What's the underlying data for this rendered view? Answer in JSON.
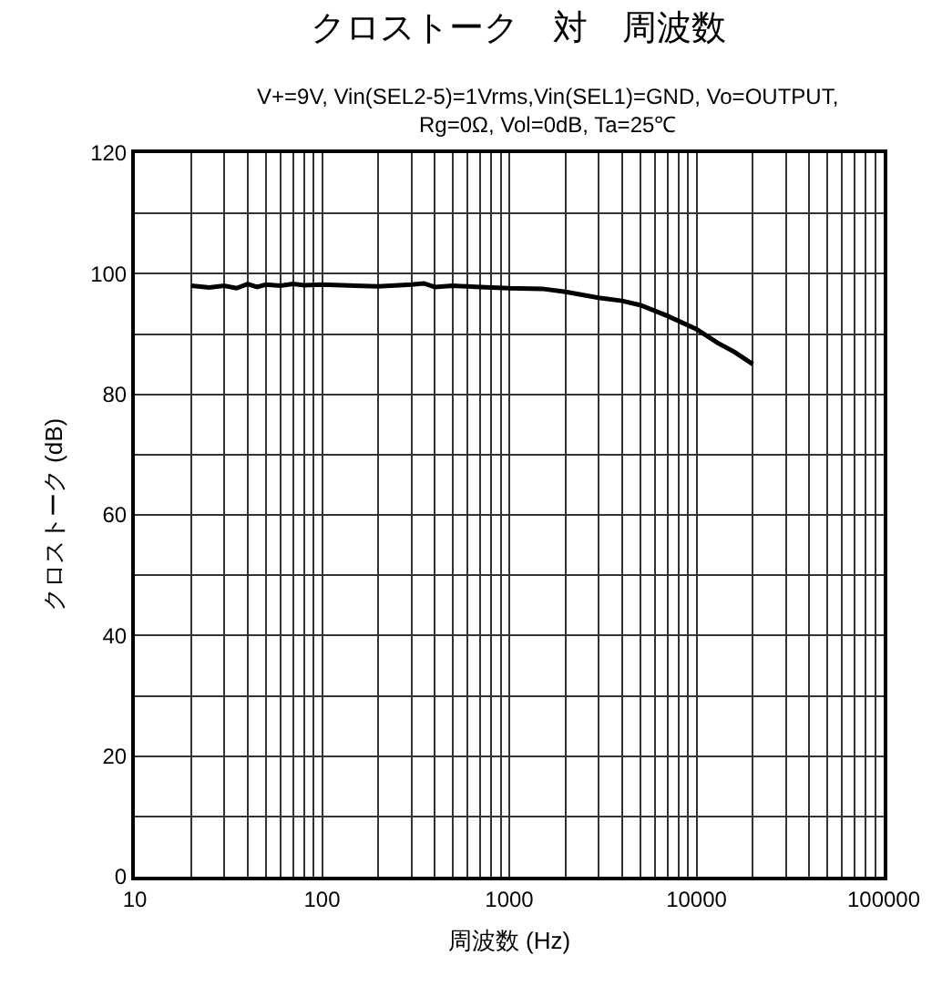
{
  "chart_data": {
    "type": "line",
    "title": "クロストーク　対　周波数",
    "subtitle": "V+=9V, Vin(SEL2-5)=1Vrms,Vin(SEL1)=GND, Vo=OUTPUT,\nRg=0Ω, Vol=0dB, Ta=25℃",
    "xlabel": "周波数 (Hz)",
    "ylabel": "クロストーク (dB)",
    "log": "x",
    "grid": true,
    "marker": "none",
    "line_style": "solid",
    "xlim": [
      10,
      100000
    ],
    "ylim": [
      0,
      120
    ],
    "xticks": [
      10,
      {
        "value": 20,
        "label": null
      },
      {
        "value": 30,
        "label": null
      },
      {
        "value": 40,
        "label": null
      },
      {
        "value": 50,
        "label": null
      },
      {
        "value": 60,
        "label": null
      },
      {
        "value": 70,
        "label": null
      },
      {
        "value": 80,
        "label": null
      },
      {
        "value": 90,
        "label": null
      },
      100,
      {
        "value": 200,
        "label": null
      },
      {
        "value": 300,
        "label": null
      },
      {
        "value": 400,
        "label": null
      },
      {
        "value": 500,
        "label": null
      },
      {
        "value": 600,
        "label": null
      },
      {
        "value": 700,
        "label": null
      },
      {
        "value": 800,
        "label": null
      },
      {
        "value": 900,
        "label": null
      },
      1000,
      {
        "value": 2000,
        "label": null
      },
      {
        "value": 3000,
        "label": null
      },
      {
        "value": 4000,
        "label": null
      },
      {
        "value": 5000,
        "label": null
      },
      {
        "value": 6000,
        "label": null
      },
      {
        "value": 7000,
        "label": null
      },
      {
        "value": 8000,
        "label": null
      },
      {
        "value": 9000,
        "label": null
      },
      10000,
      {
        "value": 20000,
        "label": null
      },
      {
        "value": 30000,
        "label": null
      },
      {
        "value": 40000,
        "label": null
      },
      {
        "value": 50000,
        "label": null
      },
      {
        "value": 60000,
        "label": null
      },
      {
        "value": 70000,
        "label": null
      },
      {
        "value": 80000,
        "label": null
      },
      {
        "value": 90000,
        "label": null
      },
      100000
    ],
    "yticks": [
      0,
      {
        "value": 10,
        "label": null
      },
      20,
      {
        "value": 30,
        "label": null
      },
      40,
      {
        "value": 50,
        "label": null
      },
      60,
      {
        "value": 70,
        "label": null
      },
      80,
      {
        "value": 90,
        "label": null
      },
      100,
      {
        "value": 110,
        "label": null
      },
      120
    ],
    "x": [
      20,
      25,
      30,
      35,
      40,
      45,
      50,
      60,
      70,
      80,
      100,
      150,
      200,
      300,
      350,
      400,
      500,
      700,
      1000,
      1500,
      2000,
      3000,
      4000,
      5000,
      7000,
      10000,
      13000,
      16000,
      20000
    ],
    "series": [
      {
        "color": "#000000",
        "values": [
          98,
          97.7,
          98,
          97.6,
          98.3,
          97.8,
          98.2,
          98,
          98.3,
          98.1,
          98.2,
          98,
          97.9,
          98.2,
          98.4,
          97.8,
          98,
          97.8,
          97.6,
          97.5,
          97,
          96,
          95.5,
          94.8,
          93,
          90.8,
          88.5,
          87,
          85
        ]
      }
    ]
  }
}
